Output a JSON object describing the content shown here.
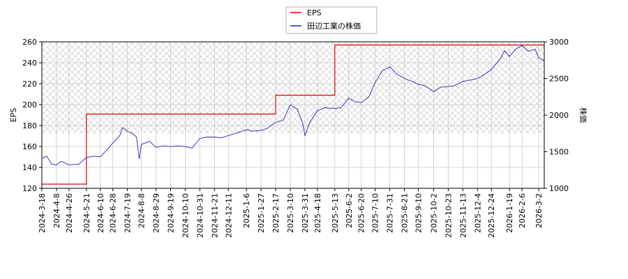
{
  "chart_data": {
    "type": "line",
    "x_dates": [
      "2024-3-18",
      "2024-4-8",
      "2024-4-26",
      "2024-5-21",
      "2024-6-10",
      "2024-6-28",
      "2024-7-19",
      "2024-8-8",
      "2024-8-29",
      "2024-9-19",
      "2024-10-10",
      "2024-10-31",
      "2024-11-21",
      "2024-12-11",
      "2025-1-6",
      "2025-1-27",
      "2025-2-17",
      "2025-3-10",
      "2025-3-31",
      "2025-4-18",
      "2025-5-13",
      "2025-6-2",
      "2025-6-20",
      "2025-7-10",
      "2025-7-31",
      "2025-8-21",
      "2025-9-10",
      "2025-10-2",
      "2025-10-23",
      "2025-11-13",
      "2025-12-4",
      "2025-12-24",
      "2026-1-19",
      "2026-2-6",
      "2026-3-2"
    ],
    "ylabel_left": "EPS",
    "ylabel_right": "株価",
    "ylim_left": [
      120,
      260
    ],
    "yticks_left": [
      120,
      140,
      160,
      180,
      200,
      220,
      240,
      260
    ],
    "ylim_right": [
      1000,
      3000
    ],
    "yticks_right": [
      1000,
      1500,
      2000,
      2500,
      3000
    ],
    "legend": [
      "EPS",
      "田辺工業の株価"
    ],
    "legend_position": "top-center",
    "grid": true,
    "colors": {
      "eps": "#dd0000",
      "price": "#2222bb",
      "grid": "#c8c8c8",
      "hatch": "#bdbdbd"
    },
    "series": [
      {
        "name": "EPS",
        "axis": "left",
        "steps": [
          [
            "2024-3-18",
            124
          ],
          [
            "2024-5-21",
            191
          ],
          [
            "2025-2-17",
            209
          ],
          [
            "2025-5-13",
            257
          ]
        ]
      },
      {
        "name": "田辺工業の株価",
        "axis": "right",
        "points": [
          [
            "2024-3-18",
            1410
          ],
          [
            "2024-3-25",
            1440
          ],
          [
            "2024-4-1",
            1330
          ],
          [
            "2024-4-8",
            1320
          ],
          [
            "2024-4-15",
            1370
          ],
          [
            "2024-4-26",
            1320
          ],
          [
            "2024-5-10",
            1330
          ],
          [
            "2024-5-21",
            1420
          ],
          [
            "2024-6-1",
            1440
          ],
          [
            "2024-6-10",
            1430
          ],
          [
            "2024-6-20",
            1530
          ],
          [
            "2024-6-28",
            1620
          ],
          [
            "2024-7-8",
            1720
          ],
          [
            "2024-7-12",
            1830
          ],
          [
            "2024-7-19",
            1780
          ],
          [
            "2024-7-26",
            1750
          ],
          [
            "2024-8-1",
            1700
          ],
          [
            "2024-8-5",
            1400
          ],
          [
            "2024-8-8",
            1600
          ],
          [
            "2024-8-20",
            1640
          ],
          [
            "2024-8-29",
            1560
          ],
          [
            "2024-9-10",
            1580
          ],
          [
            "2024-9-19",
            1570
          ],
          [
            "2024-10-1",
            1580
          ],
          [
            "2024-10-10",
            1570
          ],
          [
            "2024-10-20",
            1550
          ],
          [
            "2024-10-31",
            1680
          ],
          [
            "2024-11-10",
            1700
          ],
          [
            "2024-11-21",
            1700
          ],
          [
            "2024-12-1",
            1690
          ],
          [
            "2024-12-11",
            1720
          ],
          [
            "2024-12-25",
            1760
          ],
          [
            "2025-1-6",
            1800
          ],
          [
            "2025-1-15",
            1780
          ],
          [
            "2025-1-27",
            1790
          ],
          [
            "2025-2-5",
            1820
          ],
          [
            "2025-2-17",
            1900
          ],
          [
            "2025-2-28",
            1930
          ],
          [
            "2025-3-10",
            2140
          ],
          [
            "2025-3-20",
            2080
          ],
          [
            "2025-3-28",
            1880
          ],
          [
            "2025-3-31",
            1720
          ],
          [
            "2025-4-7",
            1900
          ],
          [
            "2025-4-18",
            2060
          ],
          [
            "2025-4-28",
            2100
          ],
          [
            "2025-5-13",
            2090
          ],
          [
            "2025-5-22",
            2100
          ],
          [
            "2025-6-2",
            2230
          ],
          [
            "2025-6-12",
            2180
          ],
          [
            "2025-6-20",
            2170
          ],
          [
            "2025-7-1",
            2250
          ],
          [
            "2025-7-10",
            2450
          ],
          [
            "2025-7-20",
            2600
          ],
          [
            "2025-7-31",
            2660
          ],
          [
            "2025-8-10",
            2560
          ],
          [
            "2025-8-21",
            2500
          ],
          [
            "2025-9-1",
            2460
          ],
          [
            "2025-9-10",
            2420
          ],
          [
            "2025-9-20",
            2400
          ],
          [
            "2025-10-2",
            2320
          ],
          [
            "2025-10-12",
            2380
          ],
          [
            "2025-10-23",
            2390
          ],
          [
            "2025-11-1",
            2400
          ],
          [
            "2025-11-13",
            2460
          ],
          [
            "2025-11-25",
            2480
          ],
          [
            "2025-12-4",
            2500
          ],
          [
            "2025-12-15",
            2560
          ],
          [
            "2025-12-24",
            2620
          ],
          [
            "2026-1-5",
            2760
          ],
          [
            "2026-1-12",
            2880
          ],
          [
            "2026-1-19",
            2800
          ],
          [
            "2026-1-28",
            2900
          ],
          [
            "2026-2-6",
            2950
          ],
          [
            "2026-2-15",
            2870
          ],
          [
            "2026-2-25",
            2900
          ],
          [
            "2026-3-2",
            2780
          ],
          [
            "2026-3-10",
            2740
          ]
        ]
      }
    ]
  }
}
